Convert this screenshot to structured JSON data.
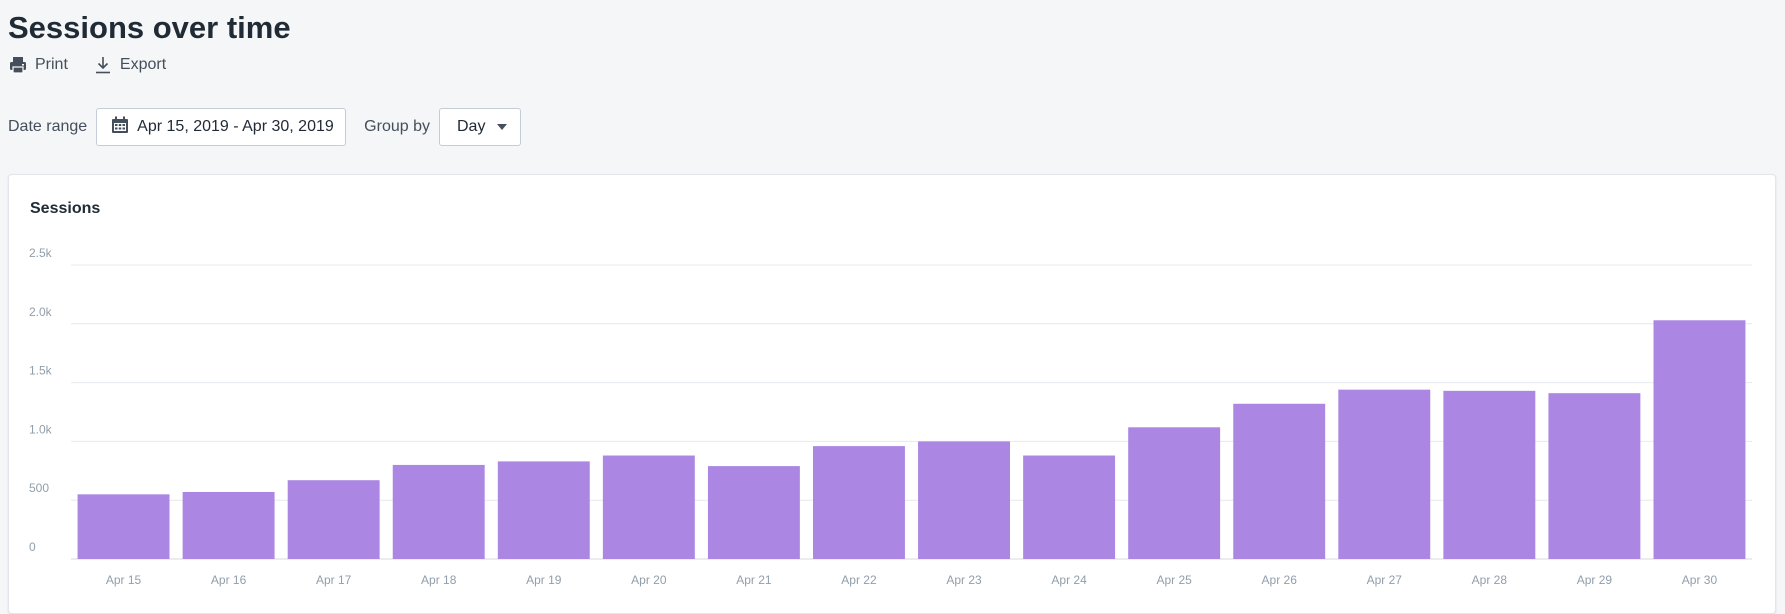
{
  "page": {
    "title": "Sessions over time"
  },
  "actions": {
    "print_label": "Print",
    "export_label": "Export"
  },
  "filters": {
    "date_range_label": "Date range",
    "date_range_value": "Apr 15, 2019 - Apr 30, 2019",
    "group_by_label": "Group by",
    "group_by_value": "Day"
  },
  "icons": {
    "print": "printer-icon",
    "export": "download-icon",
    "date": "calendar-icon",
    "dropdown": "caret-down-icon"
  },
  "colors": {
    "bar": "#ab87e3",
    "gridline": "#e6e9ee",
    "page_background": "#f4f6f8"
  },
  "chart_data": {
    "type": "bar",
    "title": "Sessions",
    "xlabel": "",
    "ylabel": "",
    "categories": [
      "Apr 15",
      "Apr 16",
      "Apr 17",
      "Apr 18",
      "Apr 19",
      "Apr 20",
      "Apr 21",
      "Apr 22",
      "Apr 23",
      "Apr 24",
      "Apr 25",
      "Apr 26",
      "Apr 27",
      "Apr 28",
      "Apr 29",
      "Apr 30"
    ],
    "values": [
      550,
      570,
      670,
      800,
      830,
      880,
      790,
      960,
      1000,
      880,
      1120,
      1320,
      1440,
      1430,
      1410,
      2030
    ],
    "ylim": [
      0,
      2500
    ],
    "yticks": [
      0,
      500,
      1000,
      1500,
      2000,
      2500
    ],
    "ytick_labels": [
      "0",
      "500",
      "1.0k",
      "1.5k",
      "2.0k",
      "2.5k"
    ],
    "grid": true,
    "legend": "none"
  }
}
